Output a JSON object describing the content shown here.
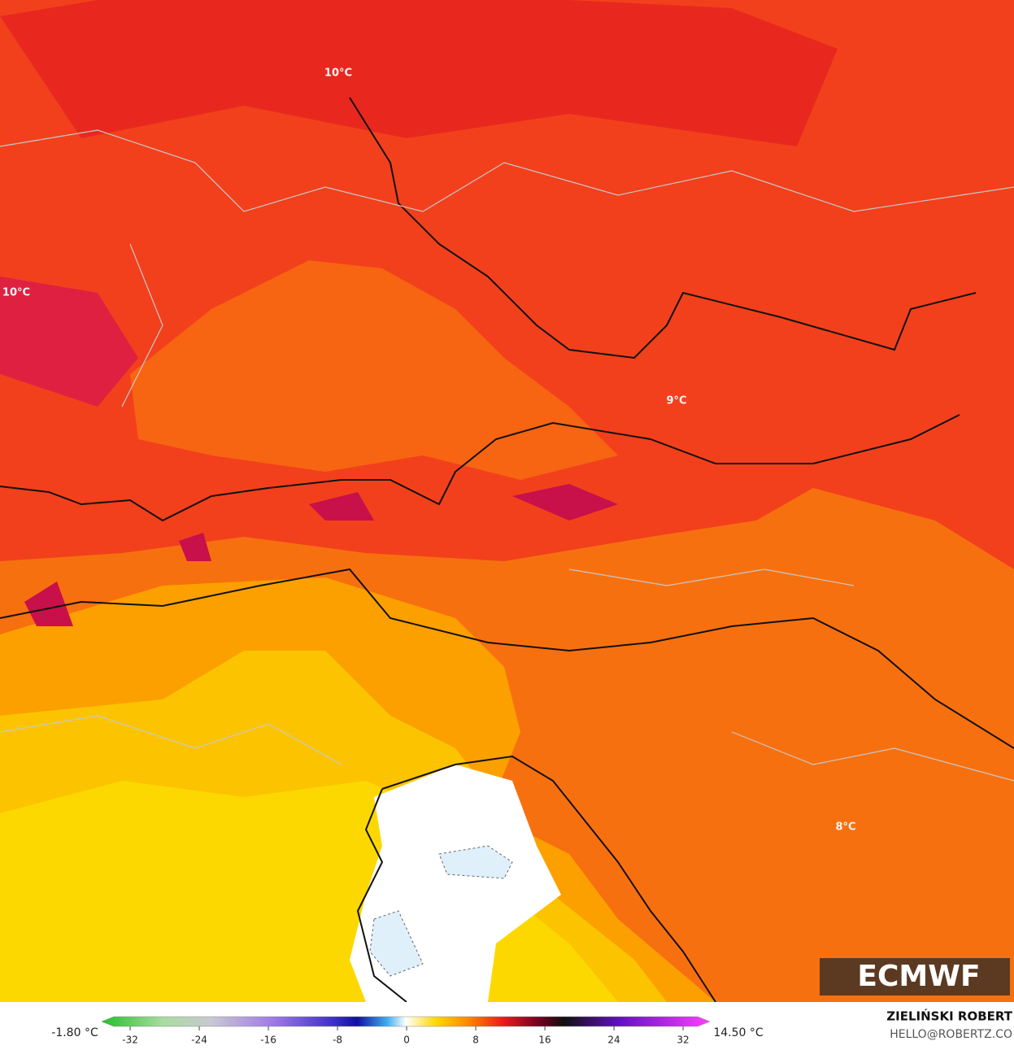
{
  "map": {
    "contour_labels": [
      "10°C",
      "10°C",
      "9°C",
      "8°C"
    ],
    "logo": "ECMWF",
    "colorbar": {
      "min_label": "-1.80 °C",
      "max_label": "14.50 °C",
      "lim": [
        -35.3,
        35.1
      ],
      "ticks": [
        -32,
        -24,
        -16,
        -8,
        0,
        8,
        16,
        24,
        32
      ]
    },
    "credit": {
      "author": "ZIELIŃSKI ROBERT",
      "email": "HELLO@ROBERTZ.CO"
    }
  }
}
